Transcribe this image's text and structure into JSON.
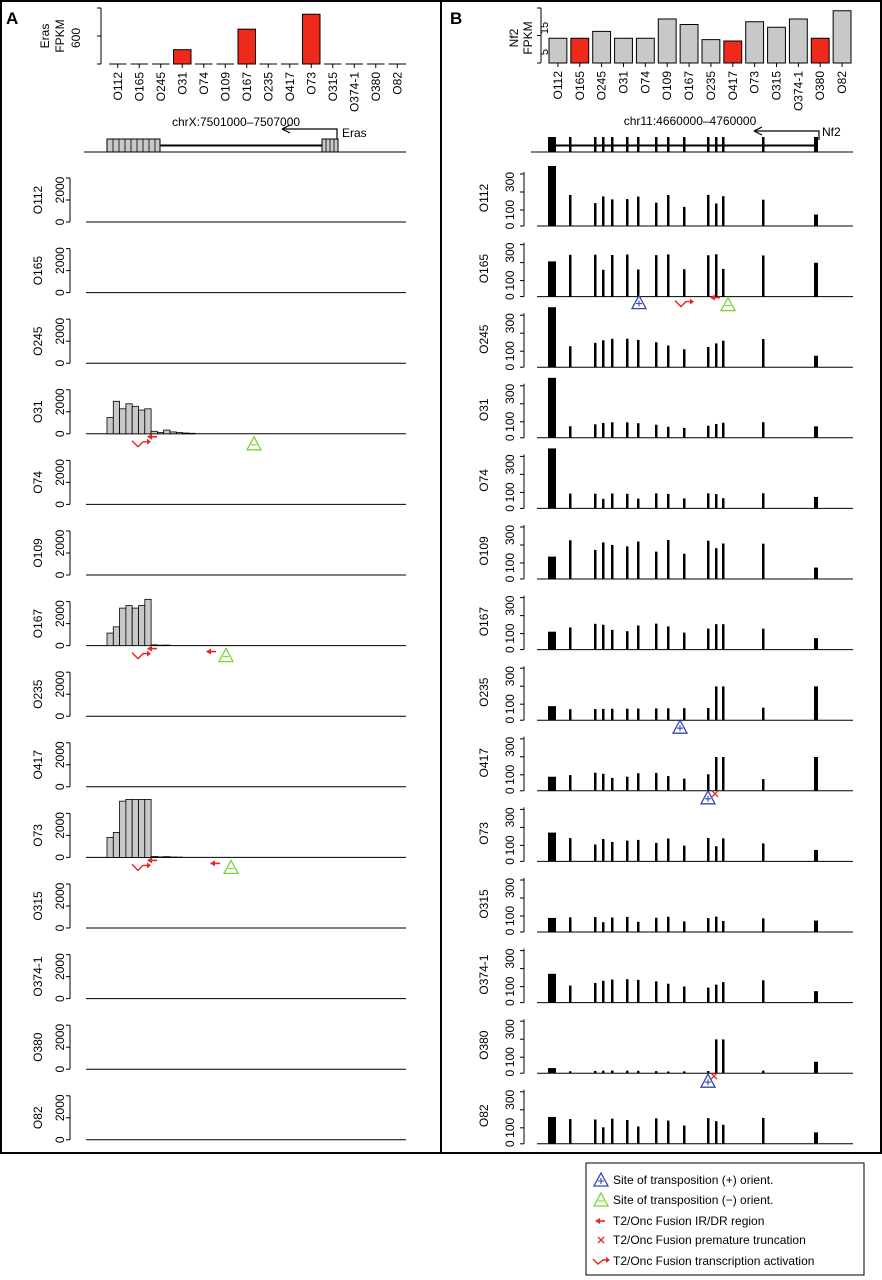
{
  "colors": {
    "highlight": "#ee2a1a",
    "normal": "#c8c8c8",
    "coverage": "#000000",
    "plus_site": "#3347b5",
    "minus_site": "#7cd336",
    "fusion": "#e8251e"
  },
  "samples": [
    "O112",
    "O165",
    "O245",
    "O31",
    "O74",
    "O109",
    "O167",
    "O235",
    "O417",
    "O73",
    "O315",
    "O374-1",
    "O380",
    "O82"
  ],
  "panelA": {
    "letter": "A",
    "expr_label": [
      "Eras",
      "FPKM"
    ],
    "expr_tick": "600",
    "locus": "chrX:7501000–7507000",
    "gene": "Eras",
    "track_ticks": [
      "2000",
      "0"
    ],
    "chart_data": {
      "type": "bar",
      "title": "",
      "ylabel": "Eras FPKM",
      "ylim": [
        0,
        900
      ],
      "categories": [
        "O112",
        "O165",
        "O245",
        "O31",
        "O74",
        "O109",
        "O167",
        "O235",
        "O417",
        "O73",
        "O315",
        "O374-1",
        "O380",
        "O82"
      ],
      "values": [
        0,
        0,
        0,
        230,
        0,
        0,
        560,
        0,
        0,
        800,
        0,
        0,
        0,
        0
      ],
      "highlighted": [
        "O31",
        "O167",
        "O73"
      ]
    },
    "coverage": {
      "O31": [
        1300,
        2600,
        2000,
        2400,
        2200,
        1900,
        2000,
        200,
        100,
        300,
        150,
        100,
        60,
        40
      ],
      "O167": [
        1000,
        1500,
        3000,
        3200,
        3000,
        3200,
        3700,
        60,
        30,
        40
      ],
      "O73": [
        1600,
        2000,
        4500,
        5000,
        5000,
        5000,
        5000,
        80,
        40,
        60,
        30,
        20
      ]
    }
  },
  "panelB": {
    "letter": "B",
    "expr_label": [
      "Nf2",
      "FPKM"
    ],
    "expr_ticks": [
      "15",
      "5"
    ],
    "locus": "chr11:4660000–4760000",
    "gene": "Nf2",
    "track_ticks": [
      "300",
      "100",
      "0"
    ],
    "chart_data": {
      "type": "bar",
      "title": "",
      "ylabel": "Nf2 FPKM",
      "ylim": [
        0,
        20
      ],
      "categories": [
        "O112",
        "O165",
        "O245",
        "O31",
        "O74",
        "O109",
        "O167",
        "O235",
        "O417",
        "O73",
        "O315",
        "O374-1",
        "O380",
        "O82"
      ],
      "values": [
        9,
        9,
        11.5,
        9,
        9,
        16,
        14,
        8.5,
        8,
        15,
        13,
        16,
        9,
        19
      ],
      "highlighted": [
        "O165",
        "O417",
        "O380"
      ]
    }
  },
  "legend": {
    "items": [
      {
        "icon": "plus-triangle",
        "label": "Site of transposition (+) orient."
      },
      {
        "icon": "minus-triangle",
        "label": "Site of transposition (−) orient."
      },
      {
        "icon": "arrow",
        "label": "T2/Onc Fusion IR/DR region"
      },
      {
        "icon": "cross",
        "label": "T2/Onc Fusion premature truncation"
      },
      {
        "icon": "bent-arrow",
        "label": "T2/Onc Fusion transcription activation"
      }
    ]
  }
}
